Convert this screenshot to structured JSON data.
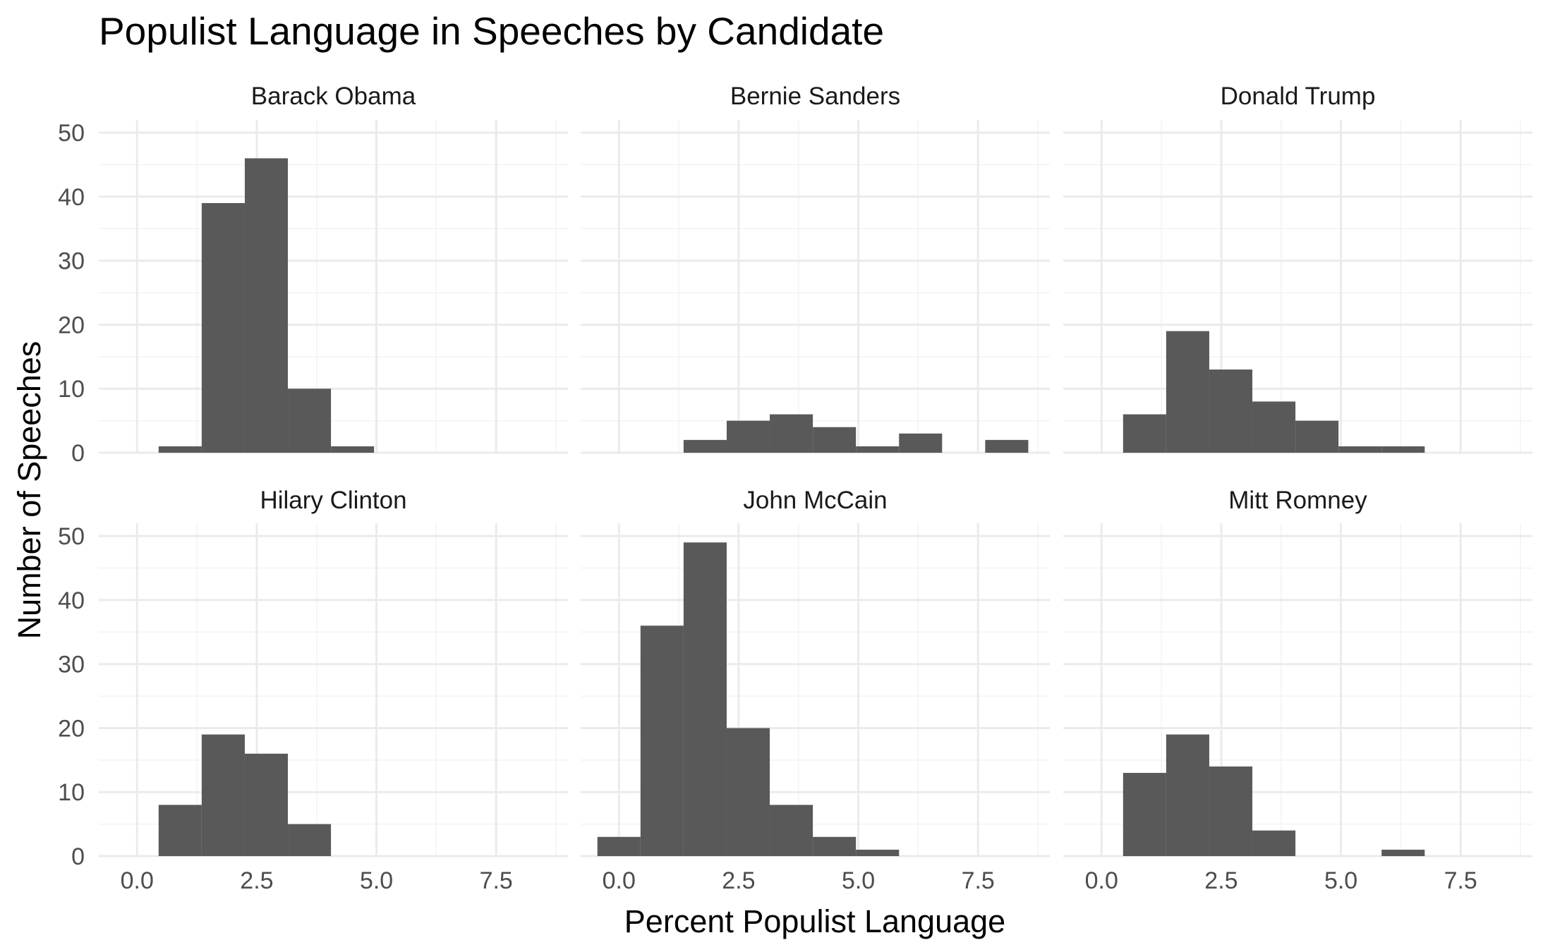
{
  "chart_data": {
    "type": "bar",
    "title": "Populist Language in Speeches by Candidate",
    "xlabel": "Percent Populist Language",
    "ylabel": "Number of Speeches",
    "xlim": [
      -0.8,
      9.0
    ],
    "ylim": [
      0,
      52
    ],
    "x_ticks": [
      "0.0",
      "2.5",
      "5.0",
      "7.5"
    ],
    "y_ticks": [
      "0",
      "10",
      "20",
      "30",
      "40",
      "50"
    ],
    "grid": true,
    "bin_width": 0.9,
    "facets": [
      {
        "name": "Barack Obama",
        "bins": [
          {
            "x_start": 0.45,
            "count": 1
          },
          {
            "x_start": 1.35,
            "count": 39
          },
          {
            "x_start": 2.25,
            "count": 46
          },
          {
            "x_start": 3.15,
            "count": 10
          },
          {
            "x_start": 4.05,
            "count": 1
          }
        ]
      },
      {
        "name": "Bernie Sanders",
        "bins": [
          {
            "x_start": 1.35,
            "count": 2
          },
          {
            "x_start": 2.25,
            "count": 5
          },
          {
            "x_start": 3.15,
            "count": 6
          },
          {
            "x_start": 4.05,
            "count": 4
          },
          {
            "x_start": 4.95,
            "count": 1
          },
          {
            "x_start": 5.85,
            "count": 3
          },
          {
            "x_start": 7.65,
            "count": 2
          }
        ]
      },
      {
        "name": "Donald Trump",
        "bins": [
          {
            "x_start": 0.45,
            "count": 6
          },
          {
            "x_start": 1.35,
            "count": 19
          },
          {
            "x_start": 2.25,
            "count": 13
          },
          {
            "x_start": 3.15,
            "count": 8
          },
          {
            "x_start": 4.05,
            "count": 5
          },
          {
            "x_start": 4.95,
            "count": 1
          },
          {
            "x_start": 5.85,
            "count": 1
          }
        ]
      },
      {
        "name": "Hilary Clinton",
        "bins": [
          {
            "x_start": 0.45,
            "count": 8
          },
          {
            "x_start": 1.35,
            "count": 19
          },
          {
            "x_start": 2.25,
            "count": 16
          },
          {
            "x_start": 3.15,
            "count": 5
          }
        ]
      },
      {
        "name": "John McCain",
        "bins": [
          {
            "x_start": -0.45,
            "count": 3
          },
          {
            "x_start": 0.45,
            "count": 36
          },
          {
            "x_start": 1.35,
            "count": 49
          },
          {
            "x_start": 2.25,
            "count": 20
          },
          {
            "x_start": 3.15,
            "count": 8
          },
          {
            "x_start": 4.05,
            "count": 3
          },
          {
            "x_start": 4.95,
            "count": 1
          }
        ]
      },
      {
        "name": "Mitt Romney",
        "bins": [
          {
            "x_start": 0.45,
            "count": 13
          },
          {
            "x_start": 1.35,
            "count": 19
          },
          {
            "x_start": 2.25,
            "count": 14
          },
          {
            "x_start": 3.15,
            "count": 4
          },
          {
            "x_start": 5.85,
            "count": 1
          }
        ]
      }
    ]
  }
}
